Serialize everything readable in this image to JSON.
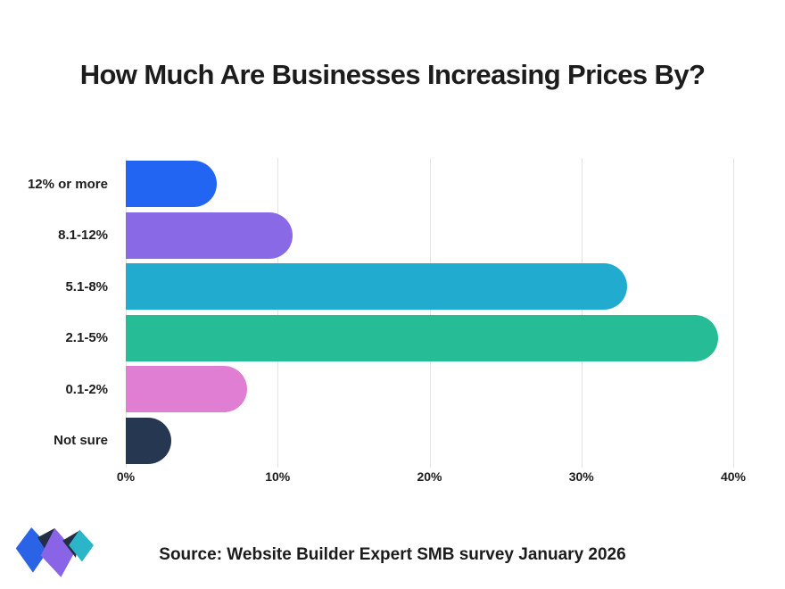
{
  "title": "How Much Are Businesses Increasing Prices By?",
  "source_line": "Source: Website Builder Expert SMB survey January 2026",
  "logo": {
    "name": "website-builder-expert-logo",
    "colors": {
      "blue": "#2b63e6",
      "purple": "#8a64e6",
      "teal": "#2ab5c9",
      "dark": "#232e44"
    }
  },
  "chart_data": {
    "type": "bar",
    "orientation": "horizontal",
    "title": "How Much Are Businesses Increasing Prices By?",
    "categories": [
      "12% or more",
      "8.1-12%",
      "5.1-8%",
      "2.1-5%",
      "0.1-2%",
      "Not sure"
    ],
    "values": [
      6,
      11,
      33,
      39,
      8,
      3
    ],
    "unit": "%",
    "bar_colors": [
      "#2365f3",
      "#8a69e6",
      "#21accf",
      "#26bd96",
      "#df7ed2",
      "#263751"
    ],
    "xlim": [
      0,
      40
    ],
    "x_ticks": [
      0,
      10,
      20,
      30,
      40
    ],
    "x_tick_labels": [
      "0%",
      "10%",
      "20%",
      "30%",
      "40%"
    ],
    "grid": true,
    "gridline_color": "#e3e3e3",
    "legend": "none"
  }
}
